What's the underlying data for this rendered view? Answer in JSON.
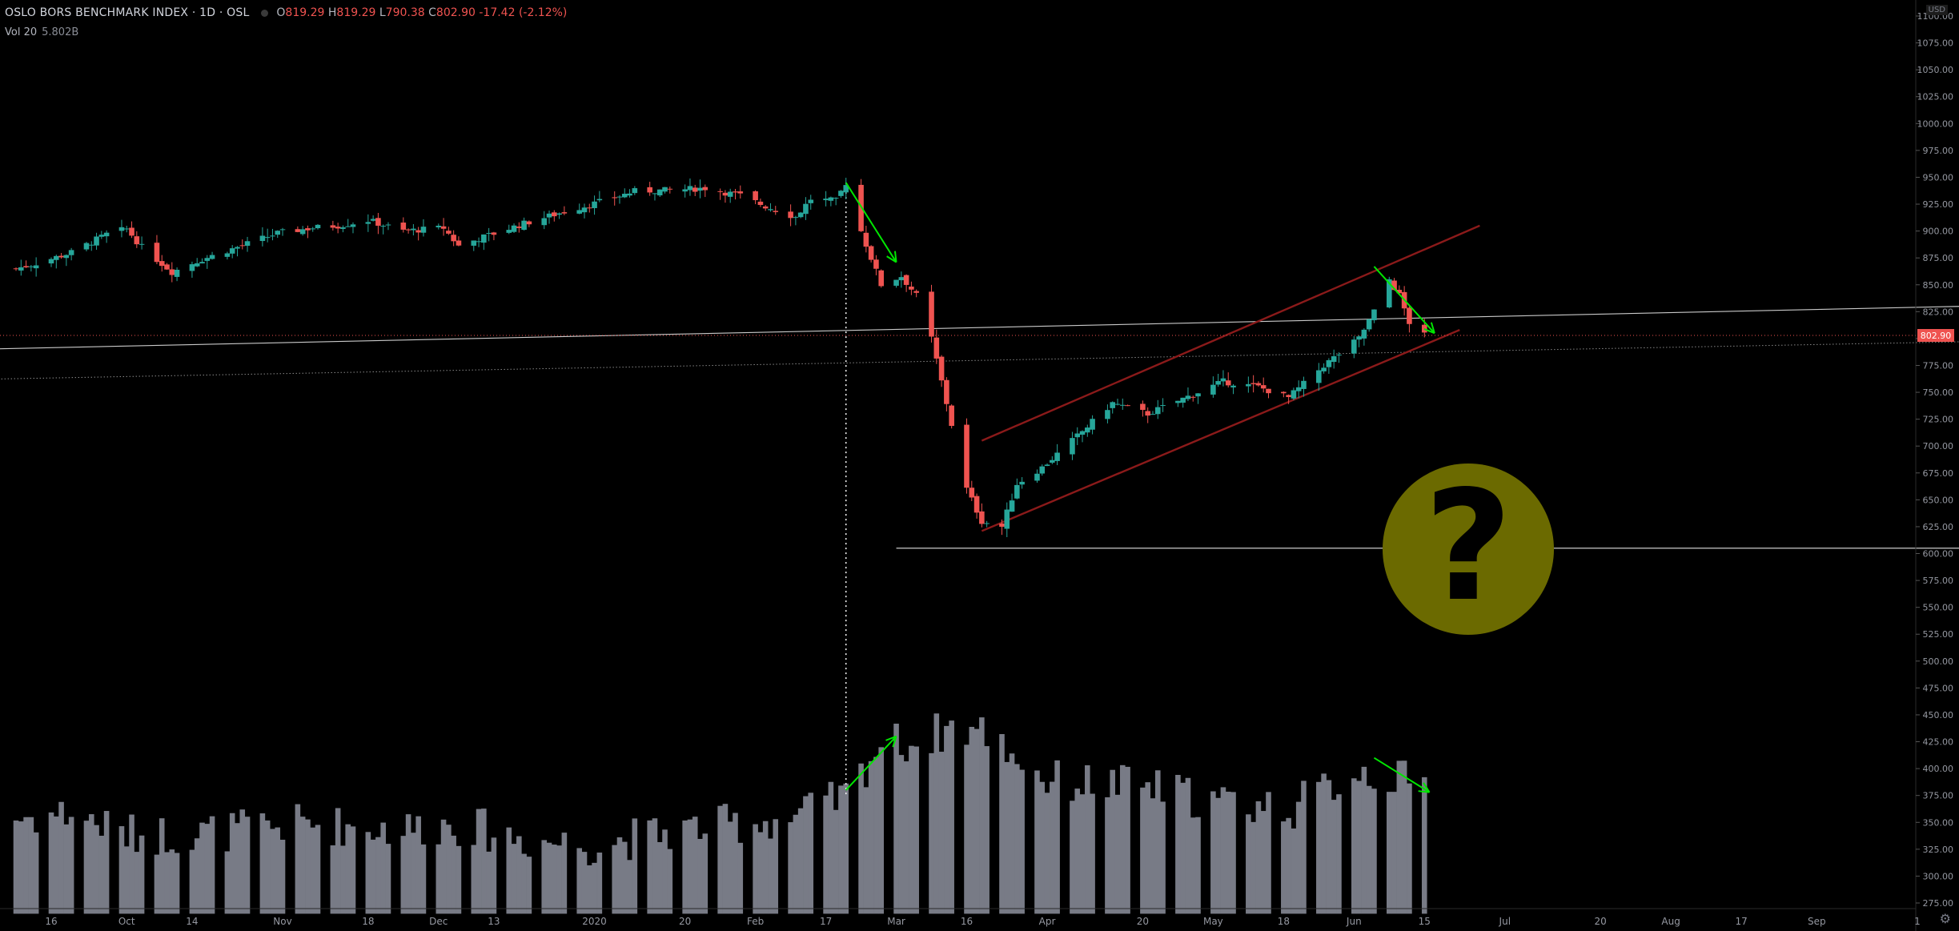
{
  "legend": {
    "symbol": "OSLO BORS BENCHMARK INDEX · 1D · OSL",
    "open_label": "O",
    "open": "819.29",
    "high_label": "H",
    "high": "819.29",
    "low_label": "L",
    "low": "790.38",
    "close_label": "C",
    "close": "802.90",
    "change": "-17.42 (-2.12%)"
  },
  "volume_legend": {
    "label": "Vol 20",
    "value": "5.802B"
  },
  "currency": "USD",
  "last_price_tag": "802.90",
  "colors": {
    "background": "#000000",
    "up": "#26a69a",
    "down": "#ef5350",
    "volume": "#787b86",
    "channel": "#8b1a1a",
    "annotation_arrow": "#00e600",
    "question_badge": "#6b6a00",
    "price_line": "#ef5350"
  },
  "icons": {
    "question_badge": "question-mark-icon",
    "settings": "gear-icon"
  },
  "chart_data": {
    "type": "candlestick",
    "title": "OSLO BORS BENCHMARK INDEX · 1D · OSL",
    "y_axis": {
      "range": [
        265,
        1115
      ],
      "ticks": [
        "1100.00",
        "1075.00",
        "1050.00",
        "1025.00",
        "1000.00",
        "975.00",
        "950.00",
        "925.00",
        "900.00",
        "875.00",
        "850.00",
        "825.00",
        "800.00",
        "775.00",
        "750.00",
        "725.00",
        "700.00",
        "675.00",
        "650.00",
        "625.00",
        "600.00",
        "575.00",
        "550.00",
        "525.00",
        "500.00",
        "475.00",
        "450.00",
        "425.00",
        "400.00",
        "375.00",
        "350.00",
        "325.00",
        "300.00",
        "275.00"
      ]
    },
    "x_axis": {
      "ticks": [
        "16",
        "Oct",
        "14",
        "Nov",
        "18",
        "Dec",
        "13",
        "2020",
        "20",
        "Feb",
        "17",
        "Mar",
        "16",
        "Apr",
        "20",
        "May",
        "18",
        "Jun",
        "15",
        "Jul",
        "20",
        "Aug",
        "17",
        "Sep",
        "1"
      ],
      "tick_dates": [
        "2019-09-16",
        "2019-10-01",
        "2019-10-14",
        "2019-11-01",
        "2019-11-18",
        "2019-12-02",
        "2019-12-13",
        "2020-01-02",
        "2020-01-20",
        "2020-02-03",
        "2020-02-17",
        "2020-03-02",
        "2020-03-16",
        "2020-04-01",
        "2020-04-20",
        "2020-05-04",
        "2020-05-18",
        "2020-06-01",
        "2020-06-15",
        "2020-07-01",
        "2020-07-20",
        "2020-08-03",
        "2020-08-17",
        "2020-09-01",
        "2020-09-21"
      ]
    },
    "first_session": "2019-09-09",
    "last_session": "2020-06-15",
    "close_path": [
      [
        "2019-09-09",
        865
      ],
      [
        "2019-09-13",
        870
      ],
      [
        "2019-09-20",
        880
      ],
      [
        "2019-09-27",
        897
      ],
      [
        "2019-10-01",
        902
      ],
      [
        "2019-10-04",
        885
      ],
      [
        "2019-10-10",
        862
      ],
      [
        "2019-10-15",
        872
      ],
      [
        "2019-10-23",
        885
      ],
      [
        "2019-10-31",
        898
      ],
      [
        "2019-11-07",
        903
      ],
      [
        "2019-11-12",
        905
      ],
      [
        "2019-11-18",
        910
      ],
      [
        "2019-11-25",
        900
      ],
      [
        "2019-12-03",
        903
      ],
      [
        "2019-12-06",
        886
      ],
      [
        "2019-12-10",
        893
      ],
      [
        "2019-12-19",
        907
      ],
      [
        "2019-12-27",
        918
      ],
      [
        "2020-01-03",
        927
      ],
      [
        "2020-01-10",
        937
      ],
      [
        "2020-01-17",
        938
      ],
      [
        "2020-01-24",
        940
      ],
      [
        "2020-01-31",
        933
      ],
      [
        "2020-02-05",
        923
      ],
      [
        "2020-02-11",
        913
      ],
      [
        "2020-02-14",
        930
      ],
      [
        "2020-02-19",
        928
      ],
      [
        "2020-02-21",
        945
      ],
      [
        "2020-02-24",
        900
      ],
      [
        "2020-02-26",
        875
      ],
      [
        "2020-02-28",
        850
      ],
      [
        "2020-03-03",
        858
      ],
      [
        "2020-03-06",
        840
      ],
      [
        "2020-03-09",
        800
      ],
      [
        "2020-03-12",
        740
      ],
      [
        "2020-03-16",
        660
      ],
      [
        "2020-03-19",
        630
      ],
      [
        "2020-03-23",
        625
      ],
      [
        "2020-03-26",
        665
      ],
      [
        "2020-03-31",
        680
      ],
      [
        "2020-04-06",
        705
      ],
      [
        "2020-04-14",
        740
      ],
      [
        "2020-04-21",
        730
      ],
      [
        "2020-04-30",
        748
      ],
      [
        "2020-05-06",
        760
      ],
      [
        "2020-05-13",
        755
      ],
      [
        "2020-05-19",
        745
      ],
      [
        "2020-05-26",
        775
      ],
      [
        "2020-06-02",
        800
      ],
      [
        "2020-06-05",
        825
      ],
      [
        "2020-06-08",
        855
      ],
      [
        "2020-06-10",
        840
      ],
      [
        "2020-06-12",
        815
      ],
      [
        "2020-06-15",
        802.9
      ]
    ],
    "volume_level_path": [
      [
        "2019-09-09",
        350
      ],
      [
        "2019-09-20",
        355
      ],
      [
        "2019-10-01",
        335
      ],
      [
        "2019-10-15",
        335
      ],
      [
        "2019-11-05",
        345
      ],
      [
        "2019-11-25",
        340
      ],
      [
        "2019-12-05",
        345
      ],
      [
        "2019-12-20",
        330
      ],
      [
        "2020-01-02",
        325
      ],
      [
        "2020-01-20",
        340
      ],
      [
        "2020-02-10",
        350
      ],
      [
        "2020-02-21",
        370
      ],
      [
        "2020-02-28",
        420
      ],
      [
        "2020-03-06",
        420
      ],
      [
        "2020-03-13",
        435
      ],
      [
        "2020-03-20",
        430
      ],
      [
        "2020-04-01",
        385
      ],
      [
        "2020-04-20",
        380
      ],
      [
        "2020-05-05",
        365
      ],
      [
        "2020-05-20",
        360
      ],
      [
        "2020-06-02",
        395
      ],
      [
        "2020-06-15",
        380
      ]
    ],
    "volume_axis_note": "volume bars share the price axis scale",
    "horizontal_levels": [
      603
    ],
    "last_price": 802.9
  },
  "annotations": {
    "channel_upper": [
      [
        "2020-03-19",
        705
      ],
      [
        "2020-06-26",
        905
      ]
    ],
    "channel_lower": [
      [
        "2020-03-19",
        621
      ],
      [
        "2020-06-22",
        808
      ]
    ],
    "trendline_solid": [
      [
        "2019-09-01",
        790
      ],
      [
        "2020-09-30",
        830
      ]
    ],
    "trendline_dotted": [
      [
        "2019-09-01",
        762
      ],
      [
        "2020-09-30",
        797
      ]
    ],
    "support_line": [
      [
        "2020-03-02",
        605
      ],
      [
        "2020-09-30",
        605
      ]
    ],
    "vertical_event_date": "2020-02-21",
    "price_arrows": [
      [
        [
          "2020-02-21",
          945
        ],
        [
          "2020-03-02",
          871
        ]
      ],
      [
        [
          "2020-06-05",
          867
        ],
        [
          "2020-06-17",
          805
        ]
      ]
    ],
    "volume_arrows": [
      [
        [
          "2020-02-21",
          380
        ],
        [
          "2020-03-02",
          430
        ]
      ],
      [
        [
          "2020-06-05",
          410
        ],
        [
          "2020-06-16",
          378
        ]
      ]
    ]
  }
}
